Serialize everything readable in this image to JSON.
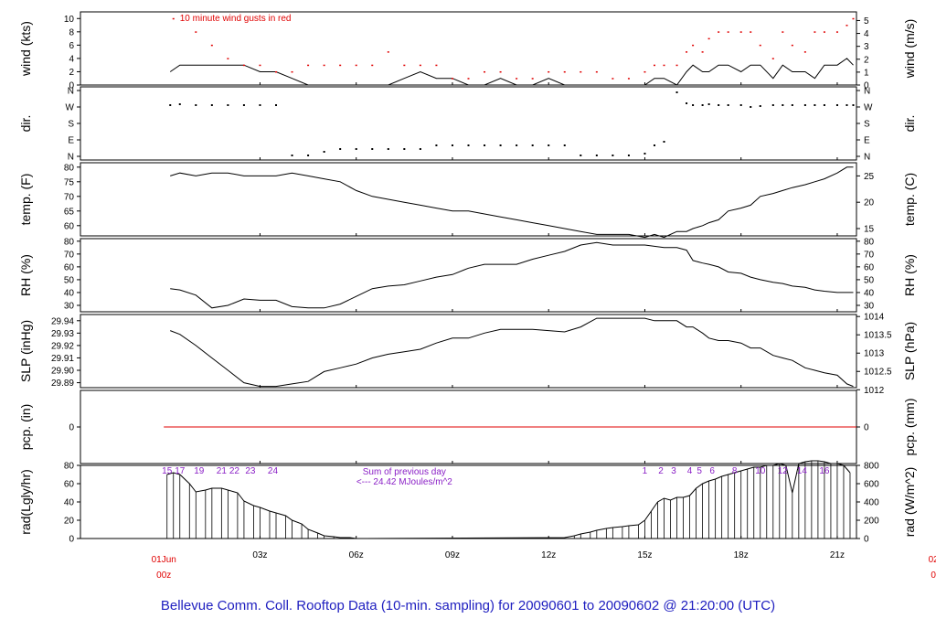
{
  "title": "Bellevue Comm. Coll. Rooftop Data (10-min. sampling) for 20090601  to  20090602 @ 21:20:00  (UTC)",
  "colors": {
    "line": "#000000",
    "gust": "#e00000",
    "precip": "#e00000",
    "purple": "#8a1fc6",
    "title": "#2020c0"
  },
  "annotations": {
    "gust_note": "10  minute wind gusts in red",
    "sum_note": "Sum of previous day",
    "sum_value": "<--- 24.42 MJoules/m^2"
  },
  "chart_data": [
    {
      "type": "line",
      "id": "wind",
      "ylabel_left": "wind (kts)",
      "ylabel_right": "wind (m/s)",
      "yticks_left": [
        "0",
        "2",
        "4",
        "6",
        "8",
        "10"
      ],
      "yticks_right": [
        "0",
        "1",
        "2",
        "3",
        "4",
        "5"
      ],
      "ylim": [
        0,
        11
      ],
      "x": [
        0.2,
        0.5,
        1,
        1.5,
        2,
        2.5,
        3,
        3.5,
        4,
        4.5,
        5,
        5.5,
        6,
        6.5,
        7,
        7.5,
        8,
        8.5,
        9,
        9.5,
        10,
        10.5,
        11,
        11.5,
        12,
        12.5,
        13,
        13.5,
        14,
        14.5,
        15,
        15.3,
        15.6,
        16,
        16.3,
        16.5,
        16.8,
        17,
        17.3,
        17.6,
        18,
        18.3,
        18.6,
        19,
        19.3,
        19.6,
        20,
        20.3,
        20.6,
        21,
        21.3,
        21.5
      ],
      "values": [
        2,
        3,
        3,
        3,
        3,
        3,
        2,
        2,
        1,
        0,
        0,
        0,
        0,
        0,
        0,
        1,
        2,
        1,
        1,
        0,
        0,
        1,
        0,
        0,
        1,
        0,
        0,
        0,
        0,
        0,
        0,
        1,
        1,
        0,
        2,
        3,
        2,
        2,
        3,
        3,
        2,
        3,
        3,
        1,
        3,
        2,
        2,
        1,
        3,
        3,
        4,
        3
      ],
      "gust_x": [
        0.3,
        1,
        1.5,
        2,
        2.5,
        3,
        3.5,
        4,
        4.5,
        5,
        5.5,
        6,
        6.5,
        7,
        7.5,
        8,
        8.5,
        9,
        9.5,
        10,
        10.5,
        11,
        11.5,
        12,
        12.5,
        13,
        13.5,
        14,
        14.5,
        15,
        15.3,
        15.6,
        16,
        16.3,
        16.5,
        16.8,
        17,
        17.3,
        17.6,
        18,
        18.3,
        18.6,
        19,
        19.3,
        19.6,
        20,
        20.3,
        20.6,
        21,
        21.3,
        21.5
      ],
      "gust_values": [
        10,
        8,
        6,
        4,
        3,
        3,
        2,
        2,
        3,
        3,
        3,
        3,
        3,
        5,
        3,
        3,
        3,
        1,
        1,
        2,
        2,
        1,
        1,
        2,
        2,
        2,
        2,
        1,
        1,
        2,
        3,
        3,
        3,
        5,
        6,
        5,
        7,
        8,
        8,
        8,
        8,
        6,
        4,
        8,
        6,
        5,
        8,
        8,
        8,
        9,
        10
      ]
    },
    {
      "type": "scatter",
      "id": "dir",
      "ylabel_left": "dir.",
      "ylabel_right": "dir.",
      "yticks_left": [
        "N",
        "E",
        "S",
        "W",
        "N"
      ],
      "yticks_right": [
        "N",
        "E",
        "S",
        "W",
        "N"
      ],
      "ylim": [
        0,
        360
      ],
      "x": [
        0.2,
        0.5,
        1,
        1.5,
        2,
        2.5,
        3,
        3.5,
        4,
        4.5,
        5,
        5.5,
        6,
        6.5,
        7,
        7.5,
        8,
        8.5,
        9,
        9.5,
        10,
        10.5,
        11,
        11.5,
        12,
        12.5,
        13,
        13.5,
        14,
        14.5,
        15,
        15.3,
        15.6,
        16,
        16.3,
        16.5,
        16.8,
        17,
        17.3,
        17.6,
        18,
        18.3,
        18.6,
        19,
        19.3,
        19.6,
        20,
        20.3,
        20.6,
        21,
        21.3,
        21.5
      ],
      "values": [
        280,
        285,
        280,
        280,
        280,
        280,
        280,
        280,
        5,
        5,
        25,
        40,
        40,
        40,
        40,
        40,
        40,
        60,
        60,
        60,
        60,
        60,
        60,
        60,
        60,
        60,
        5,
        5,
        5,
        5,
        15,
        60,
        80,
        350,
        290,
        280,
        280,
        285,
        280,
        280,
        280,
        270,
        275,
        280,
        280,
        280,
        280,
        280,
        280,
        280,
        280,
        280
      ]
    },
    {
      "type": "line",
      "id": "temp",
      "ylabel_left": "temp. (F)",
      "ylabel_right": "temp. (C)",
      "yticks_left": [
        "60",
        "65",
        "70",
        "75",
        "80"
      ],
      "yticks_right": [
        "15",
        "20",
        "25"
      ],
      "ylim": [
        56.5,
        81.5
      ],
      "x": [
        0.2,
        0.5,
        1,
        1.5,
        2,
        2.5,
        3,
        3.5,
        4,
        4.5,
        5,
        5.5,
        6,
        6.5,
        7,
        7.5,
        8,
        8.5,
        9,
        9.5,
        10,
        10.5,
        11,
        11.5,
        12,
        12.5,
        13,
        13.5,
        14,
        14.5,
        15,
        15.3,
        15.6,
        16,
        16.3,
        16.5,
        16.8,
        17,
        17.3,
        17.6,
        18,
        18.3,
        18.6,
        19,
        19.3,
        19.6,
        20,
        20.3,
        20.6,
        21,
        21.3,
        21.5
      ],
      "values": [
        77,
        78,
        77,
        78,
        78,
        77,
        77,
        77,
        78,
        77,
        76,
        75,
        72,
        70,
        69,
        68,
        67,
        66,
        65,
        65,
        64,
        63,
        62,
        61,
        60,
        59,
        58,
        57,
        57,
        57,
        56,
        57,
        56,
        58,
        58,
        59,
        60,
        61,
        62,
        65,
        66,
        67,
        70,
        71,
        72,
        73,
        74,
        75,
        76,
        78,
        80,
        80
      ]
    },
    {
      "type": "line",
      "id": "rh",
      "ylabel_left": "RH (%)",
      "ylabel_right": "RH (%)",
      "yticks_left": [
        "30",
        "40",
        "50",
        "60",
        "70",
        "80"
      ],
      "yticks_right": [
        "30",
        "40",
        "50",
        "60",
        "70",
        "80"
      ],
      "ylim": [
        25,
        82
      ],
      "x": [
        0.2,
        0.5,
        1,
        1.5,
        2,
        2.5,
        3,
        3.5,
        4,
        4.5,
        5,
        5.5,
        6,
        6.5,
        7,
        7.5,
        8,
        8.5,
        9,
        9.5,
        10,
        10.5,
        11,
        11.5,
        12,
        12.5,
        13,
        13.5,
        14,
        14.5,
        15,
        15.3,
        15.6,
        16,
        16.3,
        16.5,
        16.8,
        17,
        17.3,
        17.6,
        18,
        18.3,
        18.6,
        19,
        19.3,
        19.6,
        20,
        20.3,
        20.6,
        21,
        21.3,
        21.5
      ],
      "values": [
        43,
        42,
        38,
        28,
        30,
        35,
        34,
        34,
        29,
        28,
        28,
        31,
        37,
        43,
        45,
        46,
        49,
        52,
        54,
        59,
        62,
        62,
        62,
        66,
        69,
        72,
        77,
        79,
        77,
        77,
        77,
        76,
        75,
        75,
        73,
        65,
        63,
        62,
        60,
        56,
        55,
        52,
        50,
        48,
        47,
        45,
        44,
        42,
        41,
        40,
        40,
        40
      ]
    },
    {
      "type": "line",
      "id": "slp",
      "ylabel_left": "SLP (inHg)",
      "ylabel_right": "SLP (hPa)",
      "yticks_left": [
        "29.89",
        "29.90",
        "29.91",
        "29.92",
        "29.93",
        "29.94"
      ],
      "yticks_right": [
        "1012",
        "1012.5",
        "1013",
        "1013.5",
        "1014"
      ],
      "ylim": [
        29.886,
        29.945
      ],
      "x": [
        0.2,
        0.5,
        1,
        1.5,
        2,
        2.5,
        3,
        3.5,
        4,
        4.5,
        5,
        5.5,
        6,
        6.5,
        7,
        7.5,
        8,
        8.5,
        9,
        9.5,
        10,
        10.5,
        11,
        11.5,
        12,
        12.5,
        13,
        13.5,
        14,
        14.5,
        15,
        15.3,
        15.6,
        16,
        16.3,
        16.5,
        16.8,
        17,
        17.3,
        17.6,
        18,
        18.3,
        18.6,
        19,
        19.3,
        19.6,
        20,
        20.3,
        20.6,
        21,
        21.3,
        21.5
      ],
      "values": [
        29.932,
        29.929,
        29.92,
        29.91,
        29.9,
        29.89,
        29.887,
        29.887,
        29.889,
        29.891,
        29.899,
        29.902,
        29.905,
        29.91,
        29.913,
        29.915,
        29.917,
        29.922,
        29.926,
        29.926,
        29.93,
        29.933,
        29.933,
        29.933,
        29.932,
        29.931,
        29.935,
        29.942,
        29.942,
        29.942,
        29.942,
        29.94,
        29.94,
        29.94,
        29.935,
        29.935,
        29.93,
        29.926,
        29.924,
        29.924,
        29.922,
        29.918,
        29.918,
        29.912,
        29.91,
        29.908,
        29.902,
        29.9,
        29.898,
        29.896,
        29.889,
        29.887
      ]
    },
    {
      "type": "line",
      "id": "pcp",
      "ylabel_left": "pcp. (in)",
      "ylabel_right": "pcp. (mm)",
      "yticks_left": [
        "0"
      ],
      "yticks_right": [
        "0"
      ],
      "ylim": [
        -1,
        1
      ],
      "x": [
        0,
        21.6
      ],
      "values": [
        0,
        0
      ]
    },
    {
      "type": "bar",
      "id": "rad",
      "ylabel_left": "rad(Lgly/hr)",
      "ylabel_right": "rad (W/m^2)",
      "yticks_left": [
        "0",
        "20",
        "40",
        "60",
        "80"
      ],
      "yticks_right": [
        "0",
        "200",
        "400",
        "600",
        "800"
      ],
      "ylim": [
        0,
        80
      ],
      "x": [
        0.1,
        0.3,
        0.5,
        0.8,
        1,
        1.3,
        1.5,
        1.8,
        2,
        2.3,
        2.5,
        2.8,
        3,
        3.3,
        3.5,
        3.8,
        4,
        4.3,
        4.5,
        4.8,
        5,
        5.3,
        5.5,
        5.8,
        6,
        6.3,
        12.5,
        12.8,
        13,
        13.3,
        13.5,
        13.8,
        14,
        14.3,
        14.5,
        14.8,
        15,
        15.2,
        15.4,
        15.6,
        15.8,
        16,
        16.2,
        16.4,
        16.6,
        16.8,
        17,
        17.2,
        17.4,
        17.6,
        17.8,
        18,
        18.2,
        18.4,
        18.6,
        18.8,
        19,
        19.2,
        19.4,
        19.6,
        19.8,
        20,
        20.2,
        20.4,
        20.6,
        20.8,
        21,
        21.2,
        21.4
      ],
      "values": [
        70,
        72,
        70,
        60,
        51,
        53,
        55,
        55,
        53,
        50,
        41,
        36,
        34,
        30,
        28,
        25,
        20,
        16,
        10,
        6,
        3,
        2,
        1,
        1,
        0,
        0,
        1,
        3,
        5,
        7,
        9,
        11,
        12,
        13,
        14,
        15,
        20,
        30,
        40,
        44,
        42,
        45,
        45,
        47,
        55,
        60,
        63,
        65,
        68,
        70,
        72,
        74,
        76,
        78,
        78,
        80,
        80,
        82,
        80,
        50,
        82,
        84,
        85,
        85,
        84,
        82,
        82,
        80,
        72
      ],
      "hour_labels": [
        "15",
        "17",
        "19",
        "21",
        "22",
        "23",
        "24",
        "1",
        "2",
        "3",
        "4",
        "5",
        "6",
        "8",
        "10",
        "12",
        "14",
        "16"
      ],
      "hour_label_x": [
        0.1,
        0.5,
        1.1,
        1.8,
        2.2,
        2.7,
        3.4,
        15,
        15.5,
        15.9,
        16.4,
        16.7,
        17.1,
        17.8,
        18.6,
        19.3,
        19.9,
        20.6
      ]
    }
  ],
  "x_axis": {
    "ticks": [
      {
        "label": "03z",
        "x": 3
      },
      {
        "label": "06z",
        "x": 6
      },
      {
        "label": "09z",
        "x": 9
      },
      {
        "label": "12z",
        "x": 12
      },
      {
        "label": "15z",
        "x": 15
      },
      {
        "label": "18z",
        "x": 18
      },
      {
        "label": "21z",
        "x": 21
      }
    ],
    "date_labels": [
      {
        "label": "01Jun",
        "sub": "00z",
        "x": 0
      },
      {
        "label": "02",
        "sub": "0",
        "x": 24
      }
    ],
    "xlim": [
      -2.6,
      21.6
    ]
  }
}
